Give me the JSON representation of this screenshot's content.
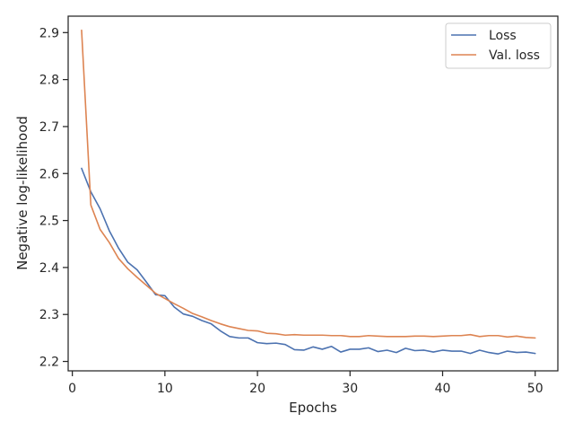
{
  "chart_data": {
    "type": "line",
    "title": "",
    "xlabel": "Epochs",
    "ylabel": "Negative log-likelihood",
    "xlim": [
      -0.45,
      52.45
    ],
    "ylim": [
      2.18,
      2.935
    ],
    "xticks": [
      0,
      10,
      20,
      30,
      40,
      50
    ],
    "yticks": [
      2.2,
      2.3,
      2.4,
      2.5,
      2.6,
      2.7,
      2.8,
      2.9
    ],
    "grid": false,
    "legend_position": "top-right",
    "series": [
      {
        "name": "Loss",
        "color": "#4c72b0",
        "x": [
          1,
          2,
          3,
          4,
          5,
          6,
          7,
          8,
          9,
          10,
          11,
          12,
          13,
          14,
          15,
          16,
          17,
          18,
          19,
          20,
          21,
          22,
          23,
          24,
          25,
          26,
          27,
          28,
          29,
          30,
          31,
          32,
          33,
          34,
          35,
          36,
          37,
          38,
          39,
          40,
          41,
          42,
          43,
          44,
          45,
          46,
          47,
          48,
          49,
          50
        ],
        "values": [
          2.611,
          2.561,
          2.525,
          2.478,
          2.441,
          2.411,
          2.395,
          2.369,
          2.342,
          2.34,
          2.316,
          2.301,
          2.296,
          2.287,
          2.28,
          2.265,
          2.253,
          2.25,
          2.25,
          2.24,
          2.238,
          2.239,
          2.236,
          2.225,
          2.224,
          2.231,
          2.226,
          2.232,
          2.22,
          2.226,
          2.226,
          2.229,
          2.221,
          2.224,
          2.219,
          2.228,
          2.223,
          2.224,
          2.22,
          2.224,
          2.222,
          2.222,
          2.217,
          2.224,
          2.219,
          2.216,
          2.222,
          2.219,
          2.22,
          2.217
        ]
      },
      {
        "name": "Val. loss",
        "color": "#dd8452",
        "x": [
          1,
          2,
          3,
          4,
          5,
          6,
          7,
          8,
          9,
          10,
          11,
          12,
          13,
          14,
          15,
          16,
          17,
          18,
          19,
          20,
          21,
          22,
          23,
          24,
          25,
          26,
          27,
          28,
          29,
          30,
          31,
          32,
          33,
          34,
          35,
          36,
          37,
          38,
          39,
          40,
          41,
          42,
          43,
          44,
          45,
          46,
          47,
          48,
          49,
          50
        ],
        "values": [
          2.905,
          2.533,
          2.481,
          2.453,
          2.419,
          2.397,
          2.379,
          2.362,
          2.345,
          2.334,
          2.323,
          2.313,
          2.302,
          2.295,
          2.287,
          2.28,
          2.274,
          2.27,
          2.266,
          2.265,
          2.26,
          2.259,
          2.256,
          2.257,
          2.256,
          2.256,
          2.256,
          2.255,
          2.255,
          2.253,
          2.253,
          2.255,
          2.254,
          2.253,
          2.253,
          2.253,
          2.254,
          2.254,
          2.253,
          2.254,
          2.255,
          2.255,
          2.257,
          2.253,
          2.255,
          2.255,
          2.252,
          2.254,
          2.251,
          2.25
        ]
      }
    ]
  }
}
